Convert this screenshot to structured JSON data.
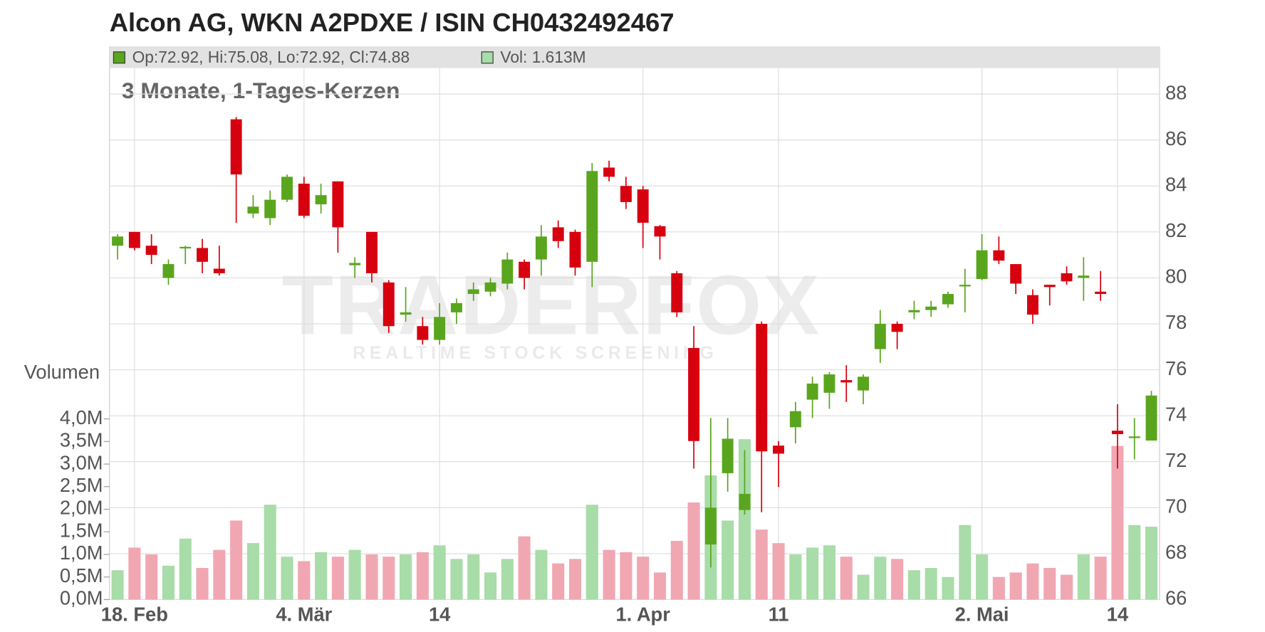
{
  "chart_data": {
    "type": "candlestick",
    "title": "Alcon AG, WKN A2PDXE / ISIN CH0432492467",
    "subtitle": "3 Monate, 1-Tages-Kerzen",
    "legend": [
      "Op:72.92, Hi:75.08, Lo:72.92, Cl:74.88",
      "Vol: 1.613M"
    ],
    "watermark": [
      "TRADERFOX",
      "REALTIME STOCK SCREENING"
    ],
    "y2label": "Volumen",
    "categories": [
      null,
      "18. Feb",
      null,
      null,
      null,
      null,
      null,
      null,
      null,
      null,
      null,
      "4. Mär",
      null,
      null,
      null,
      null,
      null,
      null,
      null,
      "14",
      null,
      null,
      null,
      null,
      null,
      null,
      null,
      null,
      null,
      null,
      null,
      "1. Apr",
      null,
      null,
      null,
      null,
      null,
      null,
      null,
      "11",
      null,
      null,
      null,
      null,
      null,
      null,
      null,
      null,
      null,
      null,
      null,
      "2. Mai",
      null,
      null,
      null,
      null,
      null,
      null,
      null,
      "14",
      null,
      null
    ],
    "open": [
      81.4,
      82.0,
      81.4,
      80.0,
      81.3,
      81.3,
      80.4,
      86.9,
      82.8,
      82.6,
      83.4,
      84.1,
      83.2,
      84.2,
      80.55,
      82.0,
      79.8,
      78.4,
      77.9,
      77.3,
      78.5,
      79.3,
      79.4,
      79.75,
      80.7,
      80.8,
      82.2,
      82.0,
      80.7,
      84.8,
      84.0,
      83.85,
      82.25,
      80.2,
      76.95,
      68.4,
      71.5,
      69.9,
      78.0,
      72.7,
      73.5,
      74.7,
      75.0,
      75.55,
      75.1,
      76.9,
      78.0,
      78.5,
      78.6,
      78.85,
      79.65,
      79.95,
      81.2,
      80.6,
      79.25,
      79.7,
      80.2,
      80.0,
      79.4,
      73.35,
      73.05,
      72.92
    ],
    "high": [
      81.9,
      82.0,
      81.9,
      80.8,
      81.4,
      81.7,
      81.4,
      87.0,
      83.6,
      83.8,
      84.5,
      84.4,
      84.1,
      84.2,
      80.9,
      82.0,
      79.9,
      79.6,
      78.3,
      78.9,
      79.1,
      79.8,
      80.0,
      81.1,
      80.8,
      82.3,
      82.5,
      82.1,
      85.0,
      85.1,
      84.4,
      84.0,
      82.3,
      80.3,
      77.9,
      73.9,
      73.9,
      72.5,
      78.1,
      72.9,
      74.6,
      75.7,
      75.9,
      76.2,
      75.8,
      78.6,
      78.1,
      79.0,
      79.0,
      79.4,
      80.4,
      81.9,
      81.8,
      80.6,
      79.5,
      79.7,
      80.5,
      80.9,
      80.3,
      74.5,
      73.9,
      75.08
    ],
    "low": [
      80.8,
      81.2,
      80.6,
      79.7,
      80.6,
      80.2,
      80.1,
      82.4,
      82.6,
      82.3,
      83.3,
      82.6,
      82.8,
      81.1,
      80.0,
      79.8,
      77.6,
      78.1,
      77.1,
      77.1,
      78.0,
      79.0,
      79.2,
      79.5,
      79.5,
      80.1,
      81.3,
      80.1,
      79.6,
      84.2,
      83.0,
      81.3,
      80.8,
      78.3,
      71.7,
      67.4,
      70.7,
      69.7,
      69.8,
      70.9,
      72.8,
      73.9,
      74.3,
      74.6,
      74.5,
      76.3,
      76.9,
      78.2,
      78.3,
      78.7,
      78.5,
      79.9,
      80.6,
      79.3,
      78.0,
      78.8,
      79.7,
      79.0,
      79.0,
      71.7,
      72.1,
      72.92
    ],
    "close": [
      81.8,
      81.3,
      81.0,
      80.6,
      81.35,
      80.7,
      80.2,
      84.5,
      83.1,
      83.4,
      84.4,
      82.7,
      83.6,
      82.2,
      80.65,
      80.2,
      77.9,
      78.5,
      77.3,
      78.3,
      78.9,
      79.5,
      79.8,
      80.8,
      80.0,
      81.8,
      81.6,
      80.45,
      84.65,
      84.4,
      83.3,
      82.4,
      81.8,
      78.5,
      72.9,
      70.0,
      73.0,
      70.6,
      72.45,
      72.35,
      74.2,
      75.4,
      75.8,
      75.45,
      75.7,
      78.0,
      77.65,
      78.6,
      78.75,
      79.3,
      79.7,
      81.2,
      80.75,
      79.75,
      78.4,
      79.6,
      79.85,
      80.1,
      79.3,
      73.2,
      73.1,
      74.88
    ],
    "volume": [
      0.65,
      1.15,
      1.0,
      0.75,
      1.35,
      0.7,
      1.1,
      1.75,
      1.25,
      2.1,
      0.95,
      0.85,
      1.05,
      0.95,
      1.1,
      1.0,
      0.95,
      1.0,
      1.05,
      1.2,
      0.9,
      1.0,
      0.6,
      0.9,
      1.4,
      1.1,
      0.8,
      0.9,
      2.1,
      1.1,
      1.05,
      0.95,
      0.6,
      1.3,
      2.15,
      2.75,
      1.75,
      3.55,
      1.55,
      1.25,
      1.0,
      1.15,
      1.2,
      0.95,
      0.55,
      0.95,
      0.9,
      0.65,
      0.7,
      0.5,
      1.65,
      1.0,
      0.5,
      0.6,
      0.8,
      0.7,
      0.55,
      1.0,
      0.95,
      3.4,
      1.65,
      1.613
    ],
    "up_color": "#5aa51e",
    "down_color": "#d7000f",
    "volume_up_color": "#a8dca8",
    "volume_down_color": "#f0a7b2",
    "ylim": [
      66,
      89
    ],
    "yticks": [
      66,
      68,
      70,
      72,
      74,
      76,
      78,
      80,
      82,
      84,
      86,
      88
    ],
    "y2lim": [
      0,
      11.7
    ],
    "y2ticks": [
      {
        "value": 0,
        "label": "0,0M"
      },
      {
        "value": 0.5,
        "label": "0,5M"
      },
      {
        "value": 1,
        "label": "1,0M"
      },
      {
        "value": 1.5,
        "label": "1,5M"
      },
      {
        "value": 2,
        "label": "2,0M"
      },
      {
        "value": 2.5,
        "label": "2,5M"
      },
      {
        "value": 3,
        "label": "3,0M"
      },
      {
        "value": 3.5,
        "label": "3,5M"
      },
      {
        "value": 4,
        "label": "4,0M"
      }
    ],
    "grid": true
  }
}
